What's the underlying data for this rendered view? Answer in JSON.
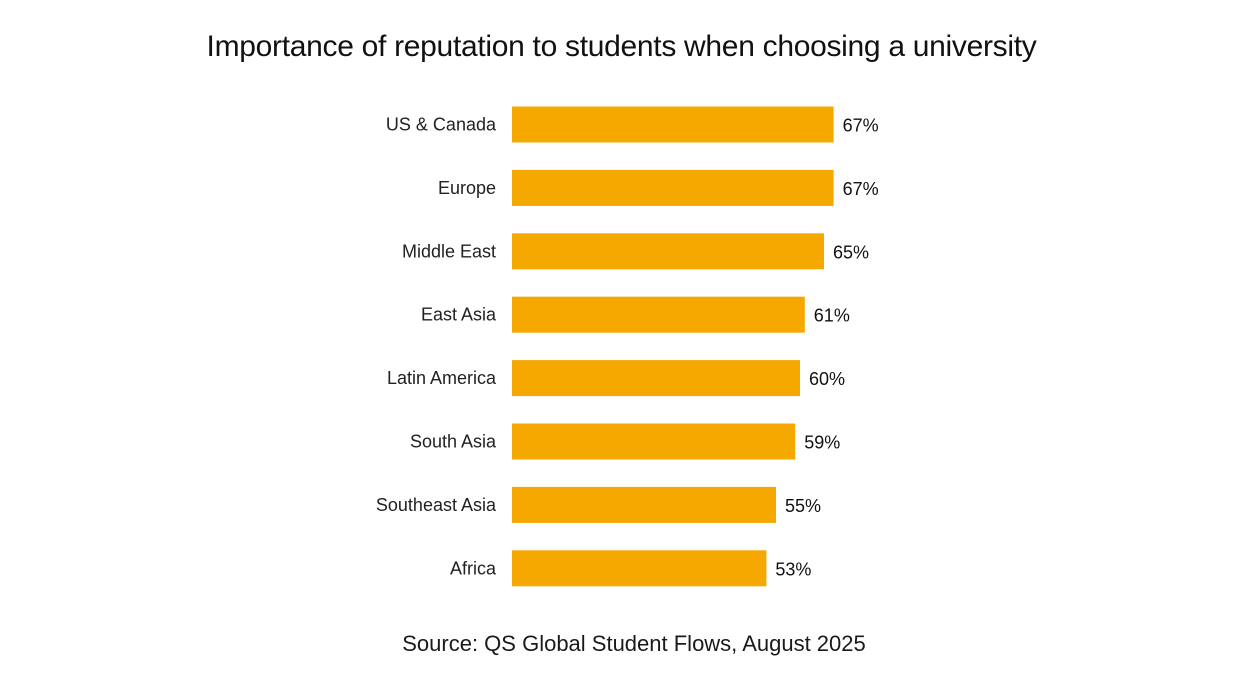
{
  "chart_data": {
    "type": "bar",
    "orientation": "horizontal",
    "title": "Importance of reputation to students when choosing a university",
    "categories": [
      "US & Canada",
      "Europe",
      "Middle East",
      "East Asia",
      "Latin America",
      "South Asia",
      "Southeast Asia",
      "Africa"
    ],
    "values": [
      67,
      67,
      65,
      61,
      60,
      59,
      55,
      53
    ],
    "value_labels": [
      "67%",
      "67%",
      "65%",
      "61%",
      "60%",
      "59%",
      "55%",
      "53%"
    ],
    "unit": "%",
    "bar_color": "#F5A800",
    "grid": false,
    "legend": "none"
  },
  "source": "Source: QS Global Student Flows, August 2025"
}
